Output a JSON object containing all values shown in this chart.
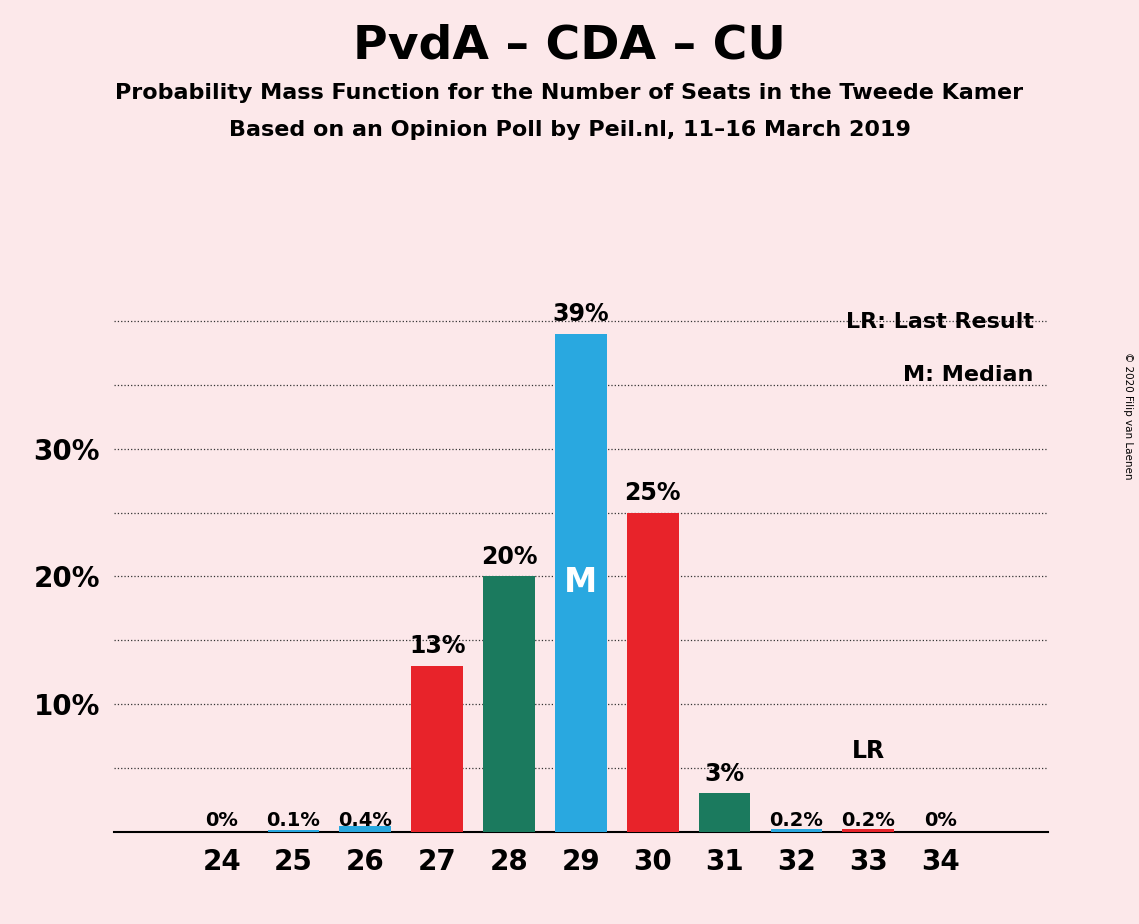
{
  "title": "PvdA – CDA – CU",
  "subtitle1": "Probability Mass Function for the Number of Seats in the Tweede Kamer",
  "subtitle2": "Based on an Opinion Poll by Peil.nl, 11–16 March 2019",
  "copyright": "© 2020 Filip van Laenen",
  "seats": [
    24,
    25,
    26,
    27,
    28,
    29,
    30,
    31,
    32,
    33,
    34
  ],
  "values": [
    0.0,
    0.1,
    0.4,
    13.0,
    20.0,
    39.0,
    25.0,
    3.0,
    0.2,
    0.2,
    0.0
  ],
  "labels": [
    "0%",
    "0.1%",
    "0.4%",
    "13%",
    "20%",
    "39%",
    "25%",
    "3%",
    "0.2%",
    "0.2%",
    "0%"
  ],
  "colors": [
    "#e8232a",
    "#29a8e0",
    "#29a8e0",
    "#e8232a",
    "#1b7a5e",
    "#29a8e0",
    "#e8232a",
    "#1b7a5e",
    "#29a8e0",
    "#e8232a",
    "#e8232a"
  ],
  "median_seat": 29,
  "lr_seat": 33,
  "background_color": "#fce8ea",
  "ylim": [
    0,
    42
  ],
  "grid_yticks": [
    5,
    10,
    15,
    20,
    25,
    30,
    35,
    40
  ],
  "axis_label_yticks": [
    10,
    20,
    30
  ],
  "axis_label_yvalues": [
    "10%",
    "20%",
    "30%"
  ],
  "bar_width": 0.72
}
